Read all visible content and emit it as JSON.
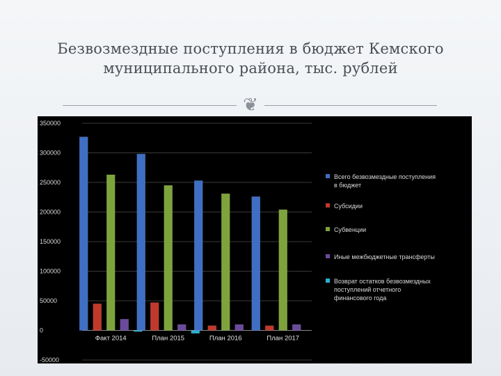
{
  "slide": {
    "title": "Безвозмездные поступления в бюджет Кемского муниципального района, тыс. рублей"
  },
  "chart_data": {
    "type": "bar",
    "categories": [
      "Факт 2014",
      "План 2015",
      "План 2016",
      "План 2017"
    ],
    "series": [
      {
        "name": "Всего безвозмездные поступления в бюджет",
        "color": "#3f6fc4",
        "values": [
          327000,
          298000,
          253000,
          226000
        ]
      },
      {
        "name": "Субсидии",
        "color": "#c0392b",
        "values": [
          45000,
          47000,
          8000,
          8000
        ]
      },
      {
        "name": "Субвенции",
        "color": "#7ea33d",
        "values": [
          263000,
          245000,
          231000,
          204000
        ]
      },
      {
        "name": "Иные межбюджетные трансферты",
        "color": "#6a4a9c",
        "values": [
          19000,
          10000,
          10000,
          10000
        ]
      },
      {
        "name": "Возврат остатков безвозмездных поступлений отчетного финансового года",
        "color": "#2bb0cf",
        "values": [
          -2000,
          -5000,
          0,
          0
        ]
      }
    ],
    "ylim": [
      -50000,
      350000
    ],
    "yticks": [
      -50000,
      0,
      50000,
      100000,
      150000,
      200000,
      250000,
      300000,
      350000
    ],
    "grid": true,
    "legend": "right"
  }
}
